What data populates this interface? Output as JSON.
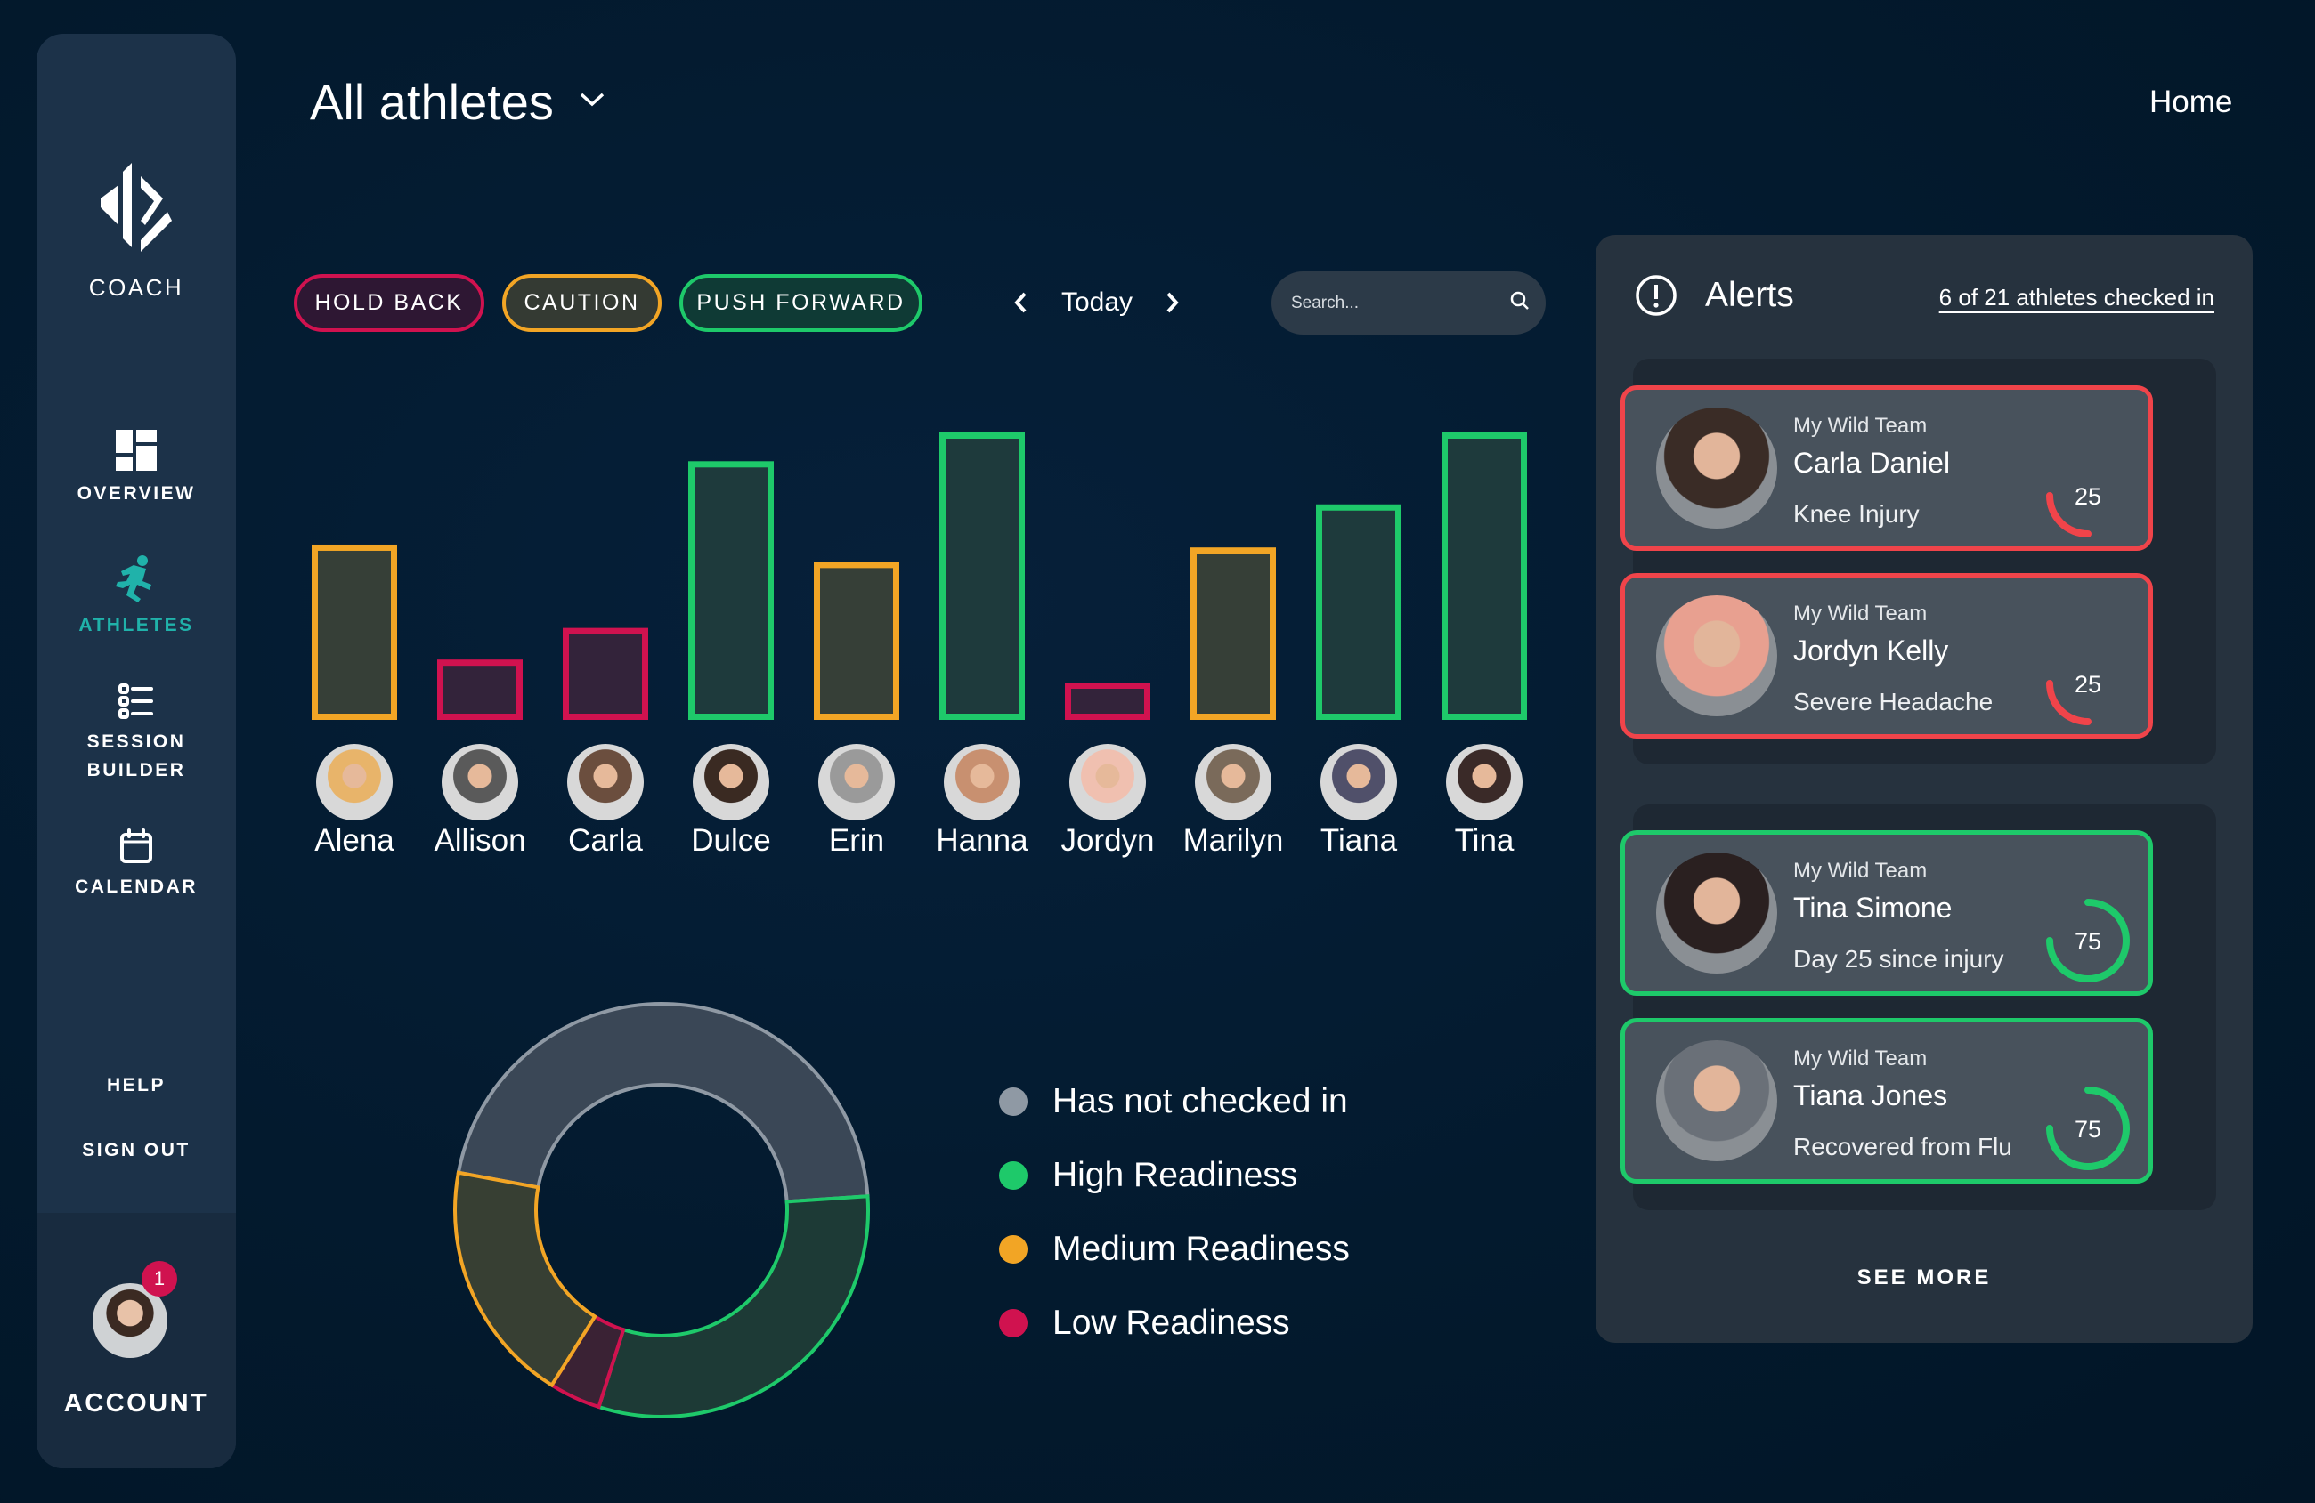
{
  "sidebar": {
    "brand": "COACH",
    "items": [
      {
        "label": "OVERVIEW",
        "icon": "dashboard-icon"
      },
      {
        "label": "ATHLETES",
        "icon": "runner-icon",
        "active": true
      },
      {
        "label_line1": "SESSION",
        "label_line2": "BUILDER",
        "icon": "list-icon"
      },
      {
        "label": "CALENDAR",
        "icon": "calendar-icon"
      }
    ],
    "help": "HELP",
    "sign_out": "SIGN OUT",
    "account": {
      "label": "ACCOUNT",
      "badge": "1"
    }
  },
  "header": {
    "title": "All athletes",
    "home": "Home"
  },
  "filters": {
    "hold_back": "HOLD BACK",
    "caution": "CAUTION",
    "push_forward": "PUSH FORWARD"
  },
  "date_nav": {
    "label": "Today"
  },
  "search": {
    "placeholder": "Search..."
  },
  "colors": {
    "green": "#1ec96a",
    "orange": "#f2a525",
    "red": "#d0124f",
    "grey": "#8f99a4",
    "accent": "#20b2aa",
    "alert_red": "#f0444a"
  },
  "chart_data": [
    {
      "type": "bar",
      "categories": [
        "Alena",
        "Allison",
        "Carla",
        "Dulce",
        "Erin",
        "Hanna",
        "Jordyn",
        "Marilyn",
        "Tiana",
        "Tina"
      ],
      "values": [
        61,
        21,
        32,
        90,
        55,
        100,
        13,
        60,
        75,
        100
      ],
      "status": [
        "medium",
        "low",
        "low",
        "high",
        "medium",
        "high",
        "low",
        "medium",
        "high",
        "high"
      ],
      "ylim": [
        0,
        100
      ]
    },
    {
      "type": "pie",
      "labels": [
        "Has not checked in",
        "High Readiness",
        "Low Readiness",
        "Medium Readiness"
      ],
      "values": [
        46,
        31,
        4,
        19
      ]
    }
  ],
  "legend": [
    {
      "label": "Has not checked in",
      "color": "#8f99a4"
    },
    {
      "label": "High Readiness",
      "color": "#1ec96a"
    },
    {
      "label": "Medium Readiness",
      "color": "#f2a525"
    },
    {
      "label": "Low Readiness",
      "color": "#d0124f"
    }
  ],
  "alerts": {
    "title": "Alerts",
    "checked_in": "6 of 21 athletes checked in",
    "cards": [
      {
        "team": "My Wild Team",
        "name": "Carla Daniel",
        "note": "Knee Injury",
        "score": 25,
        "score_label": "25",
        "color": "#f0444a"
      },
      {
        "team": "My Wild Team",
        "name": "Jordyn Kelly",
        "note": "Severe Headache",
        "score": 25,
        "score_label": "25",
        "color": "#f0444a"
      },
      {
        "team": "My Wild Team",
        "name": "Tina Simone",
        "note": "Day 25 since injury",
        "score": 75,
        "score_label": "75",
        "color": "#1ec96a"
      },
      {
        "team": "My Wild Team",
        "name": "Tiana Jones",
        "note": "Recovered from Flu",
        "score": 75,
        "score_label": "75",
        "color": "#1ec96a"
      }
    ],
    "see_more": "SEE MORE"
  }
}
